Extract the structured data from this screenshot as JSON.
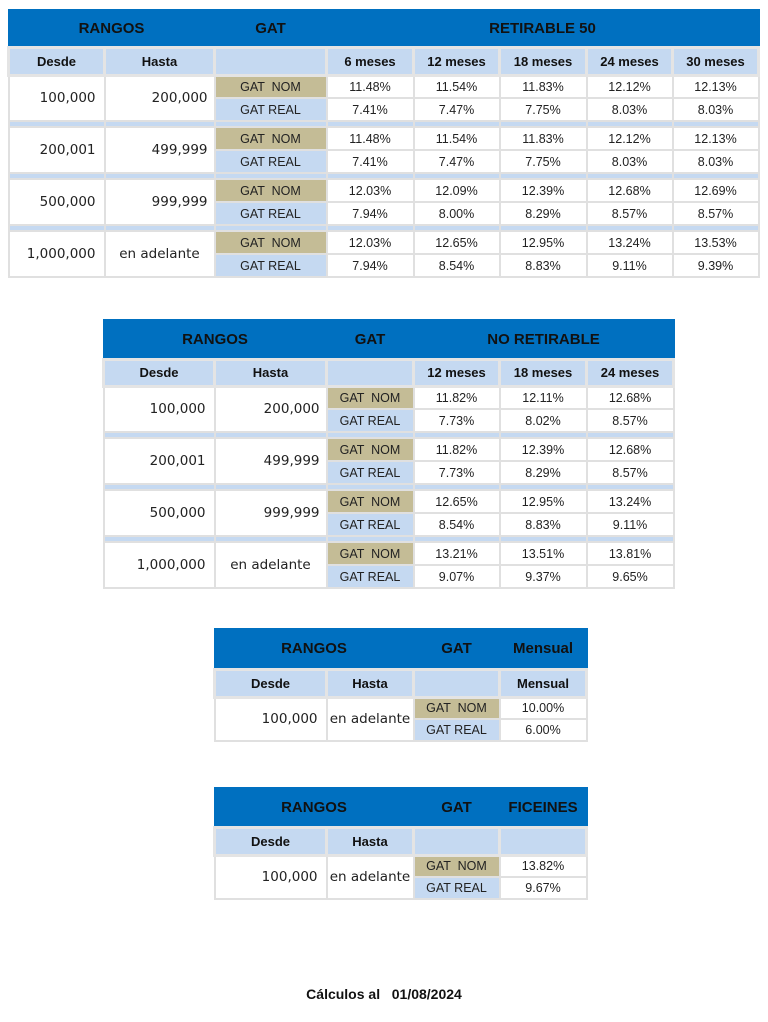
{
  "tables": [
    {
      "rangos": "RANGOS",
      "gat": "GAT",
      "product": "RETIRABLE 50",
      "desde_label": "Desde",
      "hasta_label": "Hasta",
      "periods": [
        "6 meses",
        "12 meses",
        "18 meses",
        "24 meses",
        "30 meses"
      ],
      "groups": [
        {
          "desde": "100,000",
          "hasta": "200,000",
          "nom_label": "GAT  NOM",
          "real_label": "GAT REAL",
          "nom": [
            "11.48%",
            "11.54%",
            "11.83%",
            "12.12%",
            "12.13%"
          ],
          "real": [
            "7.41%",
            "7.47%",
            "7.75%",
            "8.03%",
            "8.03%"
          ]
        },
        {
          "desde": "200,001",
          "hasta": "499,999",
          "nom_label": "GAT  NOM",
          "real_label": "GAT REAL",
          "nom": [
            "11.48%",
            "11.54%",
            "11.83%",
            "12.12%",
            "12.13%"
          ],
          "real": [
            "7.41%",
            "7.47%",
            "7.75%",
            "8.03%",
            "8.03%"
          ]
        },
        {
          "desde": "500,000",
          "hasta": "999,999",
          "nom_label": "GAT  NOM",
          "real_label": "GAT REAL",
          "nom": [
            "12.03%",
            "12.09%",
            "12.39%",
            "12.68%",
            "12.69%"
          ],
          "real": [
            "7.94%",
            "8.00%",
            "8.29%",
            "8.57%",
            "8.57%"
          ]
        },
        {
          "desde": "1,000,000",
          "hasta": "en adelante",
          "nom_label": "GAT  NOM",
          "real_label": "GAT REAL",
          "nom": [
            "12.03%",
            "12.65%",
            "12.95%",
            "13.24%",
            "13.53%"
          ],
          "real": [
            "7.94%",
            "8.54%",
            "8.83%",
            "9.11%",
            "9.39%"
          ]
        }
      ]
    },
    {
      "rangos": "RANGOS",
      "gat": "GAT",
      "product": "NO RETIRABLE",
      "desde_label": "Desde",
      "hasta_label": "Hasta",
      "periods": [
        "12 meses",
        "18 meses",
        "24 meses"
      ],
      "groups": [
        {
          "desde": "100,000",
          "hasta": "200,000",
          "nom_label": "GAT  NOM",
          "real_label": "GAT REAL",
          "nom": [
            "11.82%",
            "12.11%",
            "12.68%"
          ],
          "real": [
            "7.73%",
            "8.02%",
            "8.57%"
          ]
        },
        {
          "desde": "200,001",
          "hasta": "499,999",
          "nom_label": "GAT  NOM",
          "real_label": "GAT REAL",
          "nom": [
            "11.82%",
            "12.39%",
            "12.68%"
          ],
          "real": [
            "7.73%",
            "8.29%",
            "8.57%"
          ]
        },
        {
          "desde": "500,000",
          "hasta": "999,999",
          "nom_label": "GAT  NOM",
          "real_label": "GAT REAL",
          "nom": [
            "12.65%",
            "12.95%",
            "13.24%"
          ],
          "real": [
            "8.54%",
            "8.83%",
            "9.11%"
          ]
        },
        {
          "desde": "1,000,000",
          "hasta": "en adelante",
          "nom_label": "GAT  NOM",
          "real_label": "GAT REAL",
          "nom": [
            "13.21%",
            "13.51%",
            "13.81%"
          ],
          "real": [
            "9.07%",
            "9.37%",
            "9.65%"
          ]
        }
      ]
    },
    {
      "rangos": "RANGOS",
      "gat": "GAT",
      "product": "Mensual",
      "desde_label": "Desde",
      "hasta_label": "Hasta",
      "periods": [
        "Mensual"
      ],
      "groups": [
        {
          "desde": "100,000",
          "hasta": "en adelante",
          "nom_label": "GAT  NOM",
          "real_label": "GAT REAL",
          "nom": [
            "10.00%"
          ],
          "real": [
            "6.00%"
          ]
        }
      ]
    },
    {
      "rangos": "RANGOS",
      "gat": "GAT",
      "product": "FICEINES",
      "desde_label": "Desde",
      "hasta_label": "Hasta",
      "periods": [
        ""
      ],
      "groups": [
        {
          "desde": "100,000",
          "hasta": "en adelante",
          "nom_label": "GAT  NOM",
          "real_label": "GAT REAL",
          "nom": [
            "13.82%"
          ],
          "real": [
            "9.67%"
          ]
        }
      ]
    }
  ],
  "footer": "Cálculos al   01/08/2024"
}
